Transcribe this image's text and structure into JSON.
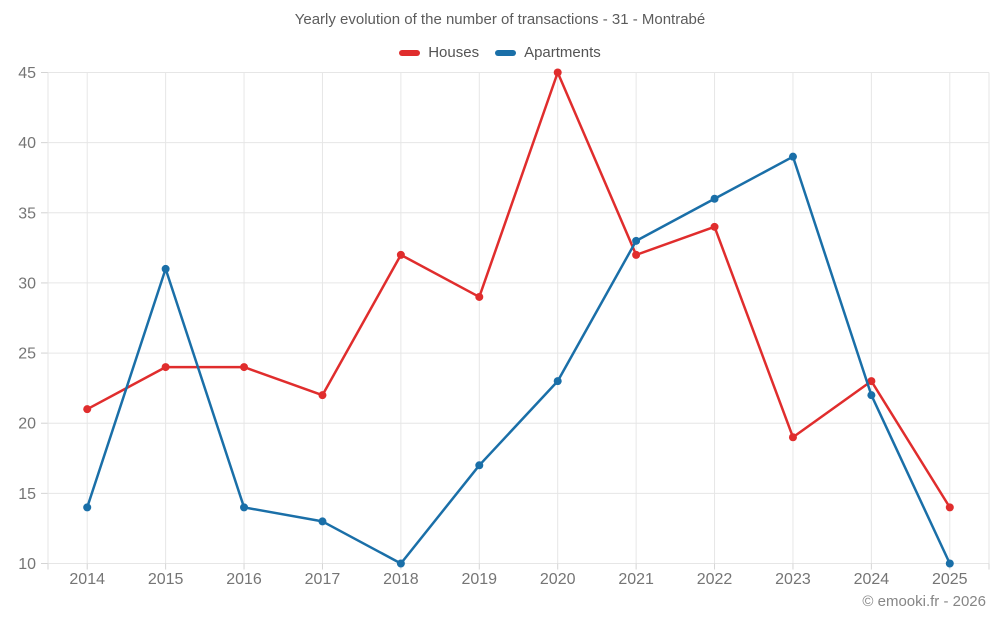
{
  "title": "Yearly evolution of the number of transactions - 31 - Montrabé",
  "footer": "© emooki.fr - 2026",
  "colors": {
    "houses": "#e02d2d",
    "apartments": "#1a6fa8",
    "gridline": "#e6e6e6",
    "tick": "#d4d4d4",
    "axis_label": "#757575",
    "title_text": "#5c5c5c",
    "legend_text": "#545454",
    "footer_text": "#868686"
  },
  "chart_data": {
    "type": "line",
    "title": "Yearly evolution of the number of transactions - 31 - Montrabé",
    "categories": [
      "2014",
      "2015",
      "2016",
      "2017",
      "2018",
      "2019",
      "2020",
      "2021",
      "2022",
      "2023",
      "2024",
      "2025"
    ],
    "series": [
      {
        "name": "Houses",
        "color": "#e02d2d",
        "values": [
          21,
          24,
          24,
          22,
          32,
          29,
          45,
          32,
          34,
          19,
          23,
          14
        ]
      },
      {
        "name": "Apartments",
        "color": "#1a6fa8",
        "values": [
          14,
          31,
          14,
          13,
          10,
          17,
          23,
          33,
          36,
          39,
          22,
          10
        ]
      }
    ],
    "xlabel": "",
    "ylabel": "",
    "ylim": [
      10,
      45
    ],
    "yticks": [
      10,
      15,
      20,
      25,
      30,
      35,
      40,
      45
    ],
    "grid": true,
    "legend_position": "top"
  }
}
